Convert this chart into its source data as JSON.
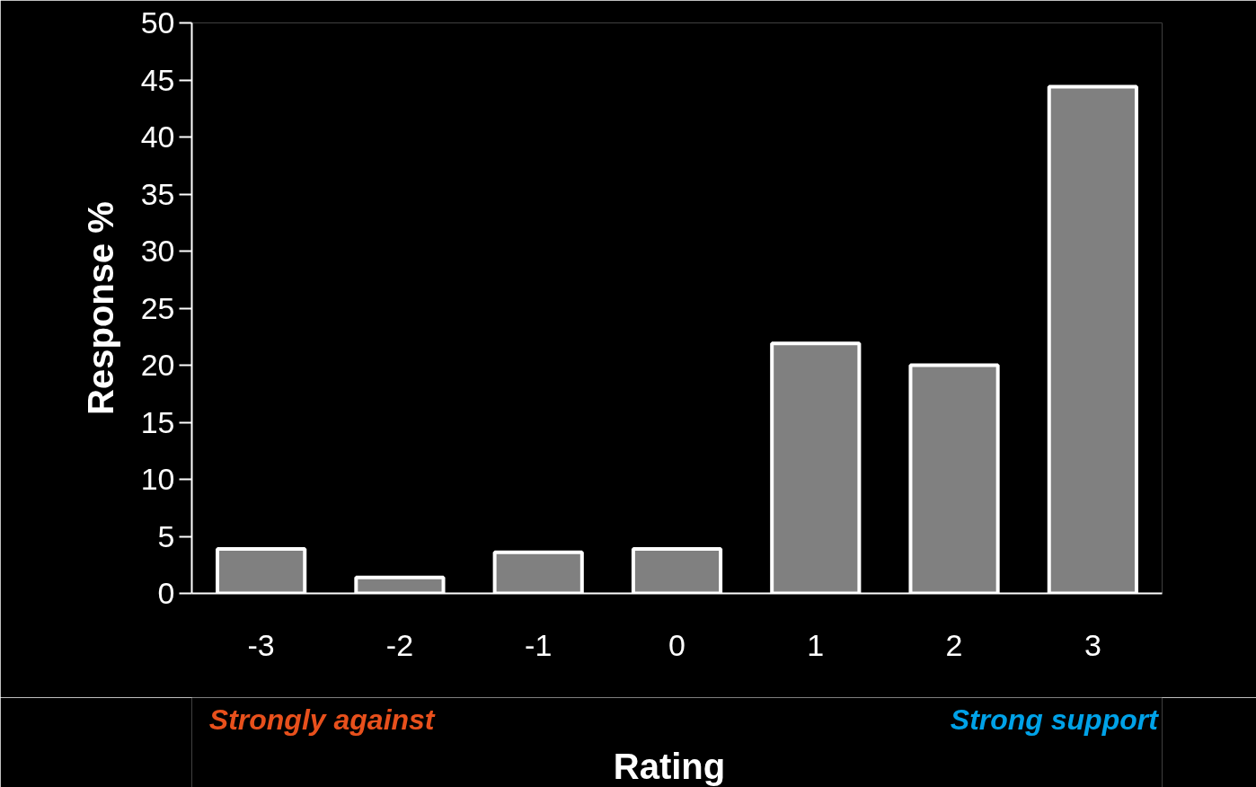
{
  "chart_data": {
    "type": "bar",
    "categories": [
      "-3",
      "-2",
      "-1",
      "0",
      "1",
      "2",
      "3"
    ],
    "values": [
      3.9,
      1.4,
      3.6,
      3.9,
      21.9,
      20.0,
      44.4
    ],
    "color": "#808080",
    "xlabel": "Rating",
    "ylabel": "Response %",
    "ylim": [
      0,
      50
    ],
    "yticks": [
      0,
      5,
      10,
      15,
      20,
      25,
      30,
      35,
      40,
      45,
      50
    ],
    "grid": false,
    "annotations": [
      "Strongly against",
      "Strong support"
    ]
  }
}
